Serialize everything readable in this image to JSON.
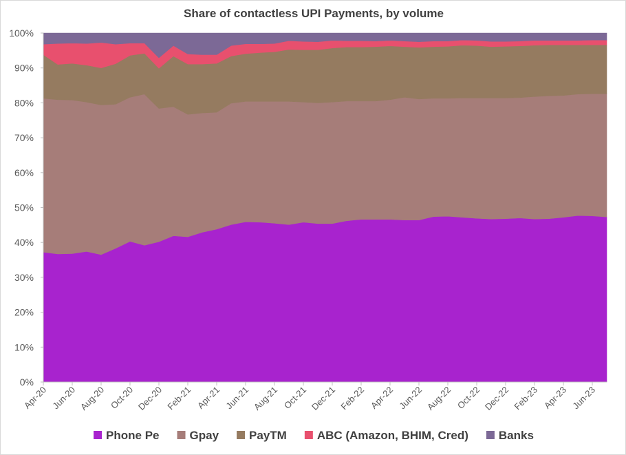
{
  "chart_data": {
    "type": "area",
    "stacked": true,
    "normalized": true,
    "title": "Share of contactless UPI Payments, by volume",
    "xlabel": "",
    "ylabel": "",
    "ylim": [
      0,
      100
    ],
    "y_ticks": [
      "0%",
      "10%",
      "20%",
      "30%",
      "40%",
      "50%",
      "60%",
      "70%",
      "80%",
      "90%",
      "100%"
    ],
    "x_months": [
      "Apr-20",
      "May-20",
      "Jun-20",
      "Jul-20",
      "Aug-20",
      "Sep-20",
      "Oct-20",
      "Nov-20",
      "Dec-20",
      "Jan-21",
      "Feb-21",
      "Mar-21",
      "Apr-21",
      "May-21",
      "Jun-21",
      "Jul-21",
      "Aug-21",
      "Sep-21",
      "Oct-21",
      "Nov-21",
      "Dec-21",
      "Jan-22",
      "Feb-22",
      "Mar-22",
      "Apr-22",
      "May-22",
      "Jun-22",
      "Jul-22",
      "Aug-22",
      "Sep-22",
      "Oct-22",
      "Nov-22",
      "Dec-22",
      "Jan-23",
      "Feb-23",
      "Mar-23",
      "Apr-23",
      "May-23",
      "Jun-23",
      "Jul-23"
    ],
    "x_tick_labels": [
      "Apr-20",
      "Jun-20",
      "Aug-20",
      "Oct-20",
      "Dec-20",
      "Feb-21",
      "Apr-21",
      "Jun-21",
      "Aug-21",
      "Oct-21",
      "Dec-21",
      "Feb-22",
      "Apr-22",
      "Jun-22",
      "Aug-22",
      "Oct-22",
      "Dec-22",
      "Feb-23",
      "Apr-23",
      "Jun-23"
    ],
    "legend_position": "bottom",
    "series": [
      {
        "name": "Phone Pe",
        "color": "#a823ce",
        "values": [
          37.2,
          36.7,
          36.8,
          37.4,
          36.5,
          38.3,
          40.3,
          39.2,
          40.2,
          41.9,
          41.6,
          42.9,
          43.8,
          45.1,
          45.9,
          45.8,
          45.5,
          45.1,
          45.8,
          45.4,
          45.4,
          46.2,
          46.6,
          46.6,
          46.6,
          46.4,
          46.4,
          47.4,
          47.5,
          47.2,
          46.9,
          46.7,
          46.8,
          47.0,
          46.7,
          46.8,
          47.2,
          47.7,
          47.6,
          47.3
        ]
      },
      {
        "name": "Gpay",
        "color": "#a67d79",
        "values": [
          44.1,
          44.2,
          44.0,
          42.8,
          42.9,
          41.3,
          41.3,
          43.3,
          38.2,
          37.0,
          35.1,
          34.2,
          33.5,
          34.8,
          34.5,
          34.6,
          34.9,
          35.3,
          34.4,
          34.6,
          34.8,
          34.3,
          33.9,
          33.9,
          34.3,
          35.2,
          34.7,
          33.9,
          33.8,
          34.2,
          34.5,
          34.7,
          34.6,
          34.5,
          35.1,
          35.2,
          34.9,
          34.8,
          35.0,
          35.3
        ]
      },
      {
        "name": "PayTM",
        "color": "#957b60",
        "values": [
          12.5,
          10.1,
          10.5,
          10.6,
          10.6,
          11.6,
          12.0,
          11.7,
          11.5,
          14.5,
          14.4,
          14.0,
          14.0,
          13.5,
          13.7,
          14.0,
          14.2,
          14.9,
          15.0,
          15.2,
          15.5,
          15.5,
          15.5,
          15.6,
          15.4,
          14.5,
          14.8,
          14.8,
          14.9,
          15.1,
          15.0,
          14.7,
          14.8,
          14.8,
          14.7,
          14.6,
          14.5,
          14.1,
          14.0,
          14.0
        ]
      },
      {
        "name": "ABC (Amazon, BHIM, Cred)",
        "color": "#e8506e",
        "values": [
          3.0,
          6.0,
          5.8,
          6.2,
          7.3,
          5.6,
          3.5,
          2.9,
          3.0,
          3.0,
          2.9,
          2.7,
          2.5,
          3.0,
          2.8,
          2.5,
          2.4,
          2.5,
          2.4,
          2.3,
          2.2,
          1.8,
          1.8,
          1.6,
          1.6,
          1.6,
          1.6,
          1.6,
          1.5,
          1.5,
          1.5,
          1.5,
          1.4,
          1.4,
          1.4,
          1.3,
          1.3,
          1.3,
          1.4,
          1.4
        ]
      },
      {
        "name": "Banks",
        "color": "#7c6996",
        "values": [
          3.2,
          3.0,
          2.9,
          3.0,
          2.7,
          3.2,
          2.9,
          2.9,
          7.1,
          3.6,
          6.0,
          6.2,
          6.2,
          3.6,
          3.1,
          3.1,
          3.0,
          2.2,
          2.4,
          2.5,
          2.1,
          2.2,
          2.2,
          2.3,
          2.1,
          2.3,
          2.5,
          2.3,
          2.3,
          2.0,
          2.1,
          2.4,
          2.4,
          2.3,
          2.1,
          2.1,
          2.1,
          2.1,
          2.0,
          2.0
        ]
      }
    ]
  }
}
